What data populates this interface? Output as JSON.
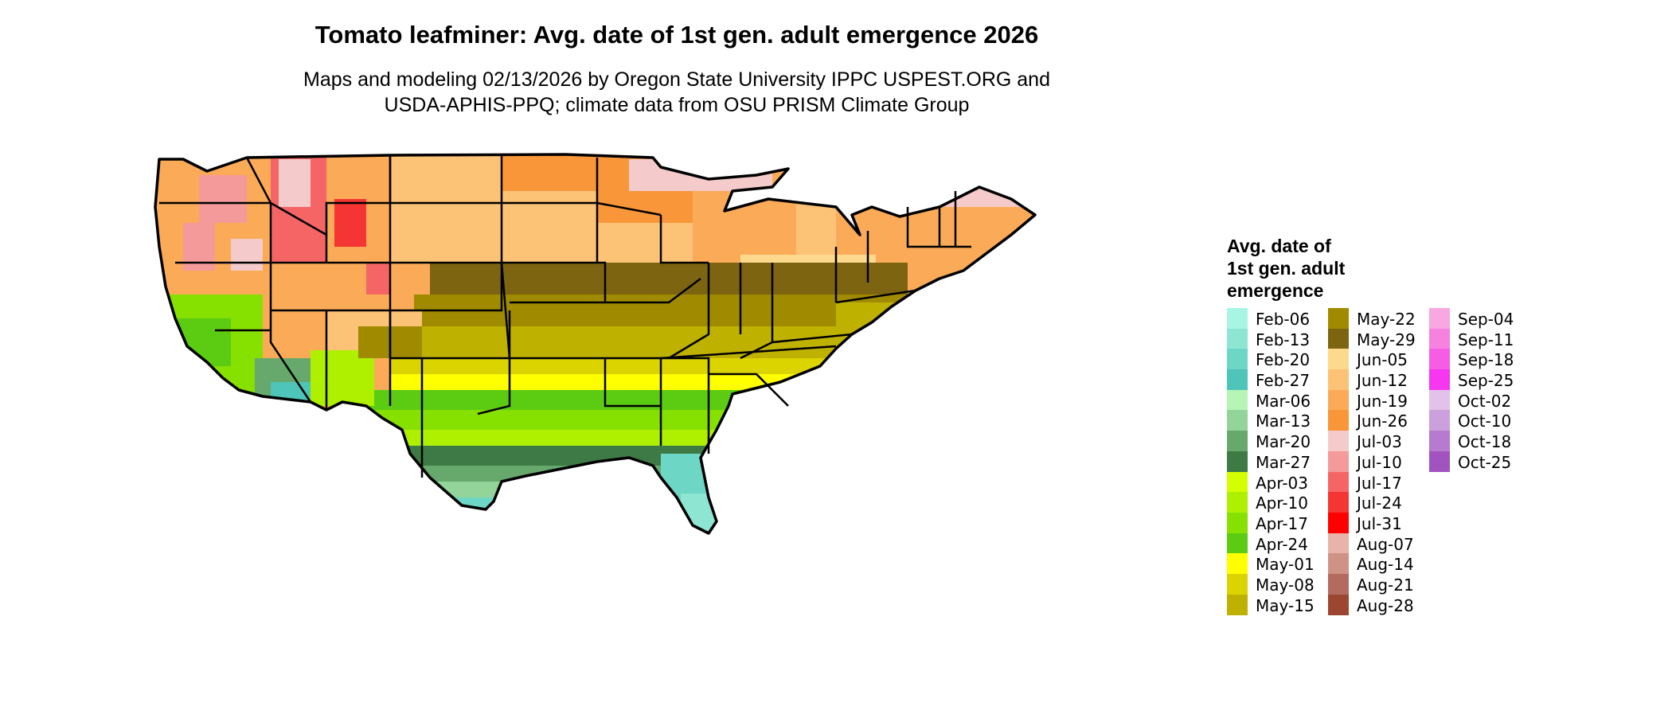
{
  "header": {
    "title": "Tomato leafminer: Avg. date of 1st gen. adult emergence 2026",
    "subtitle_line1": "Maps and modeling 02/13/2026 by Oregon State University IPPC USPEST.ORG and",
    "subtitle_line2": "USDA-APHIS-PPQ; climate data from OSU PRISM Climate Group"
  },
  "legend": {
    "title_line1": "Avg. date of",
    "title_line2": "1st gen. adult",
    "title_line3": "emergence",
    "columns": [
      [
        {
          "label": "Feb-06",
          "color": "#a8f5e3"
        },
        {
          "label": "Feb-13",
          "color": "#8ee6d2"
        },
        {
          "label": "Feb-20",
          "color": "#6ed6c5"
        },
        {
          "label": "Feb-27",
          "color": "#4fc4b8"
        },
        {
          "label": "Mar-06",
          "color": "#b7f5b5"
        },
        {
          "label": "Mar-13",
          "color": "#92d499"
        },
        {
          "label": "Mar-20",
          "color": "#67a86c"
        },
        {
          "label": "Mar-27",
          "color": "#3e7a45"
        },
        {
          "label": "Apr-03",
          "color": "#d4ff00"
        },
        {
          "label": "Apr-10",
          "color": "#aef000"
        },
        {
          "label": "Apr-17",
          "color": "#86e000"
        },
        {
          "label": "Apr-24",
          "color": "#5ccc12"
        },
        {
          "label": "May-01",
          "color": "#ffff00"
        },
        {
          "label": "May-08",
          "color": "#dbd400"
        },
        {
          "label": "May-15",
          "color": "#bfb100"
        }
      ],
      [
        {
          "label": "May-22",
          "color": "#a08b00"
        },
        {
          "label": "May-29",
          "color": "#7d6410"
        },
        {
          "label": "Jun-05",
          "color": "#fcd98c"
        },
        {
          "label": "Jun-12",
          "color": "#fcc276"
        },
        {
          "label": "Jun-19",
          "color": "#fbab58"
        },
        {
          "label": "Jun-26",
          "color": "#f99639"
        },
        {
          "label": "Jul-03",
          "color": "#f5caca"
        },
        {
          "label": "Jul-10",
          "color": "#f59a9a"
        },
        {
          "label": "Jul-17",
          "color": "#f56565"
        },
        {
          "label": "Jul-24",
          "color": "#f53434"
        },
        {
          "label": "Jul-31",
          "color": "#ff0000"
        },
        {
          "label": "Aug-07",
          "color": "#e8b3aa"
        },
        {
          "label": "Aug-14",
          "color": "#cf9286"
        },
        {
          "label": "Aug-21",
          "color": "#b36a5f"
        },
        {
          "label": "Aug-28",
          "color": "#9c4632"
        }
      ],
      [
        {
          "label": "Sep-04",
          "color": "#f7a8e0"
        },
        {
          "label": "Sep-11",
          "color": "#f781df"
        },
        {
          "label": "Sep-18",
          "color": "#f55ee4"
        },
        {
          "label": "Sep-25",
          "color": "#f736f0"
        },
        {
          "label": "Oct-02",
          "color": "#e2c2ea"
        },
        {
          "label": "Oct-10",
          "color": "#cc9fdd"
        },
        {
          "label": "Oct-18",
          "color": "#b77acf"
        },
        {
          "label": "Oct-25",
          "color": "#a154c0"
        }
      ]
    ]
  }
}
